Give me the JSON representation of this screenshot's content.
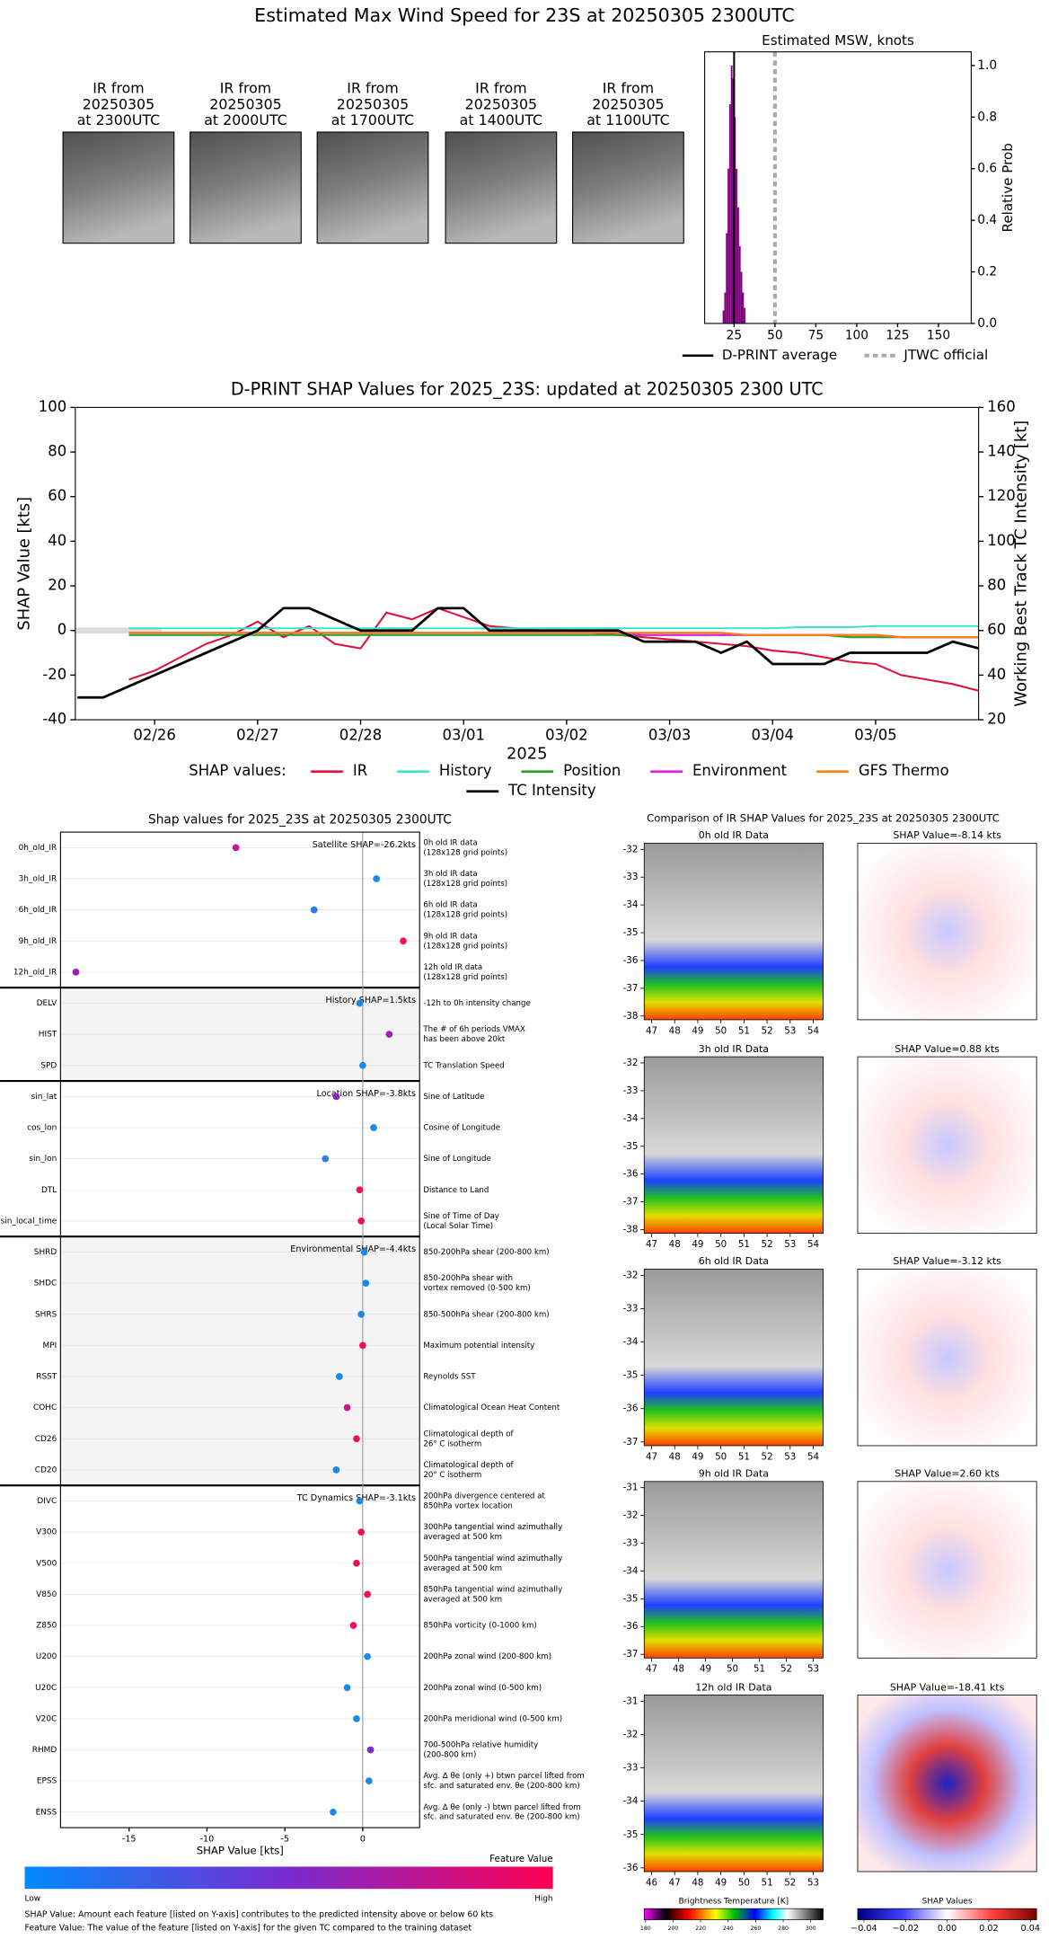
{
  "title": "Estimated Max Wind Speed for 23S at 20250305 2300UTC",
  "ir_thumbnails": [
    [
      "IR from",
      "20250305",
      "at 2300UTC"
    ],
    [
      "IR from",
      "20250305",
      "at 2000UTC"
    ],
    [
      "IR from",
      "20250305",
      "at 1700UTC"
    ],
    [
      "IR from",
      "20250305",
      "at 1400UTC"
    ],
    [
      "IR from",
      "20250305",
      "at 1100UTC"
    ]
  ],
  "chart_data": [
    {
      "type": "histogram",
      "title": "Estimated MSW, knots",
      "color": "#800080",
      "bins": [
        18,
        19,
        20,
        21,
        22,
        23,
        24,
        25,
        26,
        27,
        28,
        29,
        30,
        31,
        32
      ],
      "values": [
        0.05,
        0.12,
        0.35,
        0.6,
        0.85,
        1.0,
        0.95,
        0.8,
        0.6,
        0.45,
        0.3,
        0.2,
        0.12,
        0.06
      ],
      "xlim": [
        7,
        170
      ],
      "xticks": [
        25,
        50,
        75,
        100,
        125,
        150
      ],
      "ylim": [
        0,
        1.053
      ],
      "yticks": [
        {
          "value": 0,
          "label": "0.0"
        },
        {
          "value": 0.2,
          "label": "0.2"
        },
        {
          "value": 0.4,
          "label": "0.4"
        },
        {
          "value": 0.6,
          "label": "0.6"
        },
        {
          "value": 0.8,
          "label": "0.8"
        },
        {
          "value": 1,
          "label": "1.0"
        }
      ],
      "y_label": "Relative Prob",
      "vlines": [
        {
          "name": "D-PRINT average",
          "value": 25,
          "color": "#000000",
          "style": "solid"
        },
        {
          "name": "JTWC official",
          "value": 50,
          "color": "#aaaaaa",
          "style": "dotted"
        }
      ]
    },
    {
      "type": "line",
      "title": "D-PRINT SHAP Values for 2025_23S: updated at 20250305 2300 UTC",
      "x_label": "2025",
      "y_label": "SHAP Value [kts]",
      "y2_label": "Working Best Track TC Intensity [kt]",
      "xlim": [
        25.23,
        34.0
      ],
      "xticks": [
        {
          "value": 26,
          "label": "02/26"
        },
        {
          "value": 27,
          "label": "02/27"
        },
        {
          "value": 28,
          "label": "02/28"
        },
        {
          "value": 29,
          "label": "03/01"
        },
        {
          "value": 30,
          "label": "03/02"
        },
        {
          "value": 31,
          "label": "03/03"
        },
        {
          "value": 32,
          "label": "03/04"
        },
        {
          "value": 33,
          "label": "03/05"
        }
      ],
      "ylim": [
        -40,
        100
      ],
      "yticks": [
        -40,
        -20,
        0,
        20,
        40,
        60,
        80,
        100
      ],
      "y2lim": [
        20,
        160
      ],
      "y2ticks": [
        20,
        40,
        60,
        80,
        100,
        120,
        140,
        160
      ],
      "legend_title": "SHAP values:",
      "x": [
        25.75,
        26,
        26.25,
        26.5,
        26.75,
        27,
        27.25,
        27.5,
        27.75,
        28,
        28.25,
        28.5,
        28.75,
        29,
        29.25,
        29.5,
        29.75,
        30,
        30.25,
        30.5,
        30.75,
        31,
        31.25,
        31.5,
        31.75,
        32,
        32.25,
        32.5,
        32.75,
        33,
        33.25,
        33.5,
        33.75,
        34
      ],
      "series": [
        {
          "name": "IR",
          "color": "#dc143c",
          "values": [
            -22,
            -18,
            -12,
            -6,
            -2,
            4,
            -3,
            2,
            -6,
            -8,
            8,
            5,
            10,
            6,
            2,
            1,
            0,
            0,
            -1,
            -2,
            -3,
            -4,
            -5,
            -6,
            -7,
            -9,
            -10,
            -12,
            -14,
            -15,
            -20,
            -22,
            -24,
            -27
          ]
        },
        {
          "name": "History",
          "color": "#40e0d0",
          "values": [
            1,
            1,
            1,
            1,
            1,
            1,
            1,
            1,
            1,
            1,
            1,
            1,
            1,
            1,
            1,
            1,
            1,
            1,
            1,
            1,
            1,
            1,
            1,
            1,
            1,
            1,
            1.5,
            1.5,
            1.5,
            2,
            2,
            2,
            2,
            2
          ]
        },
        {
          "name": "Position",
          "color": "#2ca02c",
          "values": [
            -2,
            -2,
            -2,
            -2,
            -2,
            -2,
            -2,
            -2,
            -2,
            -2,
            -2,
            -2,
            -2,
            -2,
            -2,
            -2,
            -2,
            -2,
            -2,
            -2,
            -2,
            -2,
            -2,
            -2,
            -2,
            -2,
            -2,
            -2,
            -3,
            -3,
            -3,
            -3,
            -3,
            -3
          ]
        },
        {
          "name": "Environment",
          "color": "#e020e0",
          "values": [
            -1,
            -1,
            -1,
            -1,
            -1,
            -1,
            -1,
            -1,
            -1,
            -1,
            -1,
            -1,
            -1,
            -1,
            -1,
            -1,
            -1,
            -1,
            -1,
            -1,
            -2,
            -2,
            -2,
            -2,
            -2,
            -2,
            -2,
            -2,
            -2,
            -2,
            -3,
            -3,
            -3,
            -3
          ]
        },
        {
          "name": "GFS Thermo",
          "color": "#ff7f0e",
          "values": [
            -1,
            -1,
            -1,
            -1,
            -1,
            -1,
            -1,
            -1,
            -1,
            -1,
            -1,
            -1,
            -1,
            -1,
            -1,
            -1,
            -1,
            -1,
            -1,
            -1,
            -1,
            -1,
            -1,
            -1,
            -2,
            -2,
            -2,
            -2,
            -2,
            -2,
            -3,
            -3,
            -3,
            -3
          ]
        },
        {
          "name": "TC Intensity",
          "color": "#000000",
          "axis": "y2",
          "x": [
            25.25,
            25.5,
            26,
            26.5,
            27,
            27.25,
            27.5,
            28,
            28.5,
            28.75,
            29,
            29.25,
            30,
            30.5,
            30.75,
            31.25,
            31.5,
            31.75,
            32,
            32.5,
            32.75,
            33,
            33.5,
            33.75,
            34
          ],
          "values": [
            30,
            30,
            40,
            50,
            60,
            70,
            70,
            60,
            60,
            70,
            70,
            60,
            60,
            60,
            55,
            55,
            50,
            55,
            45,
            45,
            50,
            50,
            50,
            55,
            52
          ]
        }
      ]
    },
    {
      "type": "dot",
      "title": "Shap values for 2025_23S at 20250305 2300UTC",
      "x_label": "SHAP Value [kts]",
      "xlim": [
        -19.4,
        3.65
      ],
      "xticks": [
        -15,
        -10,
        -5,
        0
      ],
      "grid": true,
      "groups": [
        {
          "label": "Satellite SHAP=-26.2kts",
          "shaded": false,
          "features": [
            {
              "name": "0h_old_IR",
              "description": [
                "0h old IR data",
                "(128x128 grid points)"
              ],
              "value": -8.14,
              "color": "#c0189e"
            },
            {
              "name": "3h_old_IR",
              "description": [
                "3h old IR data",
                "(128x128 grid points)"
              ],
              "value": 0.88,
              "color": "#1e88e5"
            },
            {
              "name": "6h_old_IR",
              "description": [
                "6h old IR data",
                "(128x128 grid points)"
              ],
              "value": -3.12,
              "color": "#2a7ae8"
            },
            {
              "name": "9h_old_IR",
              "description": [
                "9h old IR data",
                "(128x128 grid points)"
              ],
              "value": 2.6,
              "color": "#ff0d57"
            },
            {
              "name": "12h_old_IR",
              "description": [
                "12h old IR data",
                "(128x128 grid points)"
              ],
              "value": -18.41,
              "color": "#9b1fbf"
            }
          ]
        },
        {
          "label": "History SHAP=1.5kts",
          "shaded": true,
          "features": [
            {
              "name": "DELV",
              "description": [
                "-12h to 0h intensity change"
              ],
              "value": -0.2,
              "color": "#1e88e5"
            },
            {
              "name": "HIST",
              "description": [
                "The # of 6h periods VMAX",
                "has been above 20kt"
              ],
              "value": 1.7,
              "color": "#a01cb8"
            },
            {
              "name": "SPD",
              "description": [
                "TC Translation Speed"
              ],
              "value": 0.0,
              "color": "#1e88e5"
            }
          ]
        },
        {
          "label": "Location SHAP=-3.8kts",
          "shaded": false,
          "features": [
            {
              "name": "sin_lat",
              "description": [
                "Sine of Latitude"
              ],
              "value": -1.7,
              "color": "#8a22c8"
            },
            {
              "name": "cos_lon",
              "description": [
                "Cosine of Longitude"
              ],
              "value": 0.7,
              "color": "#1e88e5"
            },
            {
              "name": "sin_lon",
              "description": [
                "Sine of Longitude"
              ],
              "value": -2.4,
              "color": "#1e88e5"
            },
            {
              "name": "DTL",
              "description": [
                "Distance to Land"
              ],
              "value": -0.2,
              "color": "#e8106a"
            },
            {
              "name": "sin_local_time",
              "description": [
                "Sine of Time of Day",
                "(Local Solar Time)"
              ],
              "value": -0.1,
              "color": "#f00e60"
            }
          ]
        },
        {
          "label": "Environmental SHAP=-4.4kts",
          "shaded": true,
          "features": [
            {
              "name": "SHRD",
              "description": [
                "850-200hPa shear (200-800 km)"
              ],
              "value": 0.1,
              "color": "#1e88e5"
            },
            {
              "name": "SHDC",
              "description": [
                "850-200hPa shear with",
                "vortex removed (0-500 km)"
              ],
              "value": 0.2,
              "color": "#1e88e5"
            },
            {
              "name": "SHRS",
              "description": [
                "850-500hPa shear (200-800 km)"
              ],
              "value": -0.1,
              "color": "#1e88e5"
            },
            {
              "name": "MPI",
              "description": [
                "Maximum potential intensity"
              ],
              "value": 0.0,
              "color": "#f00e60"
            },
            {
              "name": "RSST",
              "description": [
                "Reynolds SST"
              ],
              "value": -1.5,
              "color": "#1e88e5"
            },
            {
              "name": "COHC",
              "description": [
                "Climatological Ocean Heat Content"
              ],
              "value": -1.0,
              "color": "#d0148a"
            },
            {
              "name": "CD26",
              "description": [
                "Climatological depth of",
                "26° C isotherm"
              ],
              "value": -0.4,
              "color": "#e8106a"
            },
            {
              "name": "CD20",
              "description": [
                "Climatological depth of",
                "20° C isotherm"
              ],
              "value": -1.7,
              "color": "#1e88e5"
            }
          ]
        },
        {
          "label": "TC Dynamics SHAP=-3.1kts",
          "shaded": false,
          "features": [
            {
              "name": "DIVC",
              "description": [
                "200hPa divergence centered at",
                "850hPa vortex location"
              ],
              "value": -0.2,
              "color": "#1e88e5"
            },
            {
              "name": "V300",
              "description": [
                "300hPa tangential wind azimuthally",
                "averaged at 500 km"
              ],
              "value": -0.1,
              "color": "#f00e60"
            },
            {
              "name": "V500",
              "description": [
                "500hPa tangential wind azimuthally",
                "averaged at 500 km"
              ],
              "value": -0.4,
              "color": "#f00e60"
            },
            {
              "name": "V850",
              "description": [
                "850hPa tangential wind azimuthally",
                "averaged at 500 km"
              ],
              "value": 0.3,
              "color": "#f00e60"
            },
            {
              "name": "Z850",
              "description": [
                "850hPa vorticity (0-1000 km)"
              ],
              "value": -0.6,
              "color": "#e8106a"
            },
            {
              "name": "U200",
              "description": [
                "200hPa zonal wind (200-800 km)"
              ],
              "value": 0.3,
              "color": "#1e88e5"
            },
            {
              "name": "U20C",
              "description": [
                "200hPa zonal wind (0-500 km)"
              ],
              "value": -1.0,
              "color": "#1e88e5"
            },
            {
              "name": "V20C",
              "description": [
                "200hPa meridional wind (0-500 km)"
              ],
              "value": -0.4,
              "color": "#1e88e5"
            },
            {
              "name": "RHMD",
              "description": [
                "700-500hPa relative humidity",
                "(200-800 km)"
              ],
              "value": 0.5,
              "color": "#7a2ad0"
            },
            {
              "name": "EPSS",
              "description": [
                "Avg. Δ θe (only +) btwn parcel lifted from",
                "sfc. and saturated env. θe (200-800 km)"
              ],
              "value": 0.4,
              "color": "#1e88e5"
            },
            {
              "name": "ENSS",
              "description": [
                "Avg. Δ θe (only -) btwn parcel lifted from",
                "sfc. and saturated env. θe (200-800 km)"
              ],
              "value": -1.9,
              "color": "#1e88e5"
            }
          ]
        }
      ],
      "colorbar": {
        "label": "Feature Value",
        "low": "Low",
        "high": "High",
        "colors": [
          "#008afb",
          "#7a2ad0",
          "#ff0052"
        ]
      },
      "notes": [
        "SHAP Value: Amount each feature [listed on Y-axis] contributes to the predicted intensity above or below 60 kts",
        "Feature Value: The value of the feature [listed on Y-axis] for the given TC compared to the training dataset"
      ]
    }
  ],
  "ir_comparison": {
    "title": "Comparison of IR SHAP Values for 2025_23S at 20250305 2300UTC",
    "rows": [
      {
        "ir_title": "0h old IR Data",
        "shap_title": "SHAP Value=-8.14 kts",
        "yticks": [
          -32,
          -33,
          -34,
          -35,
          -36,
          -37,
          -38
        ],
        "xticks": [
          47,
          48,
          49,
          50,
          51,
          52,
          53,
          54
        ]
      },
      {
        "ir_title": "3h old IR Data",
        "shap_title": "SHAP Value=0.88 kts",
        "yticks": [
          -32,
          -33,
          -34,
          -35,
          -36,
          -37,
          -38
        ],
        "xticks": [
          47,
          48,
          49,
          50,
          51,
          52,
          53,
          54
        ]
      },
      {
        "ir_title": "6h old IR Data",
        "shap_title": "SHAP Value=-3.12 kts",
        "yticks": [
          -32,
          -33,
          -34,
          -35,
          -36,
          -37
        ],
        "xticks": [
          47,
          48,
          49,
          50,
          51,
          52,
          53,
          54
        ]
      },
      {
        "ir_title": "9h old IR Data",
        "shap_title": "SHAP Value=2.60 kts",
        "yticks": [
          -31,
          -32,
          -33,
          -34,
          -35,
          -36,
          -37
        ],
        "xticks": [
          47,
          48,
          49,
          50,
          51,
          52,
          53
        ]
      },
      {
        "ir_title": "12h old IR Data",
        "shap_title": "SHAP Value=-18.41 kts",
        "yticks": [
          -31,
          -32,
          -33,
          -34,
          -35,
          -36
        ],
        "xticks": [
          46,
          47,
          48,
          49,
          50,
          51,
          52,
          53
        ]
      }
    ],
    "bt_colorbar": {
      "label": "Brightness Temperature [K]",
      "lim": [
        179,
        309
      ],
      "ticks": [
        180,
        200,
        220,
        240,
        260,
        280,
        300
      ]
    },
    "shap_colorbar": {
      "label": "SHAP Values",
      "lim": [
        -0.043,
        0.043
      ],
      "ticks": [
        {
          "value": -0.04,
          "label": "−0.04"
        },
        {
          "value": -0.02,
          "label": "−0.02"
        },
        {
          "value": 0,
          "label": "0.00"
        },
        {
          "value": 0.02,
          "label": "0.02"
        },
        {
          "value": 0.04,
          "label": "0.04"
        }
      ]
    }
  }
}
